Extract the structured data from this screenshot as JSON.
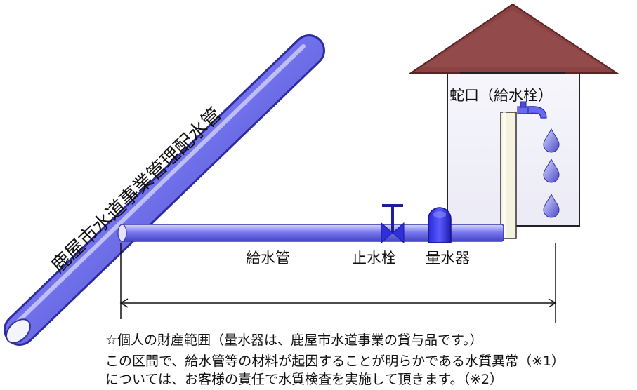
{
  "labels": {
    "main_pipe": "鹿屋市水道事業管理配水管",
    "faucet": "蛇口（給水栓）",
    "service_pipe": "給水管",
    "stop_valve": "止水栓",
    "water_meter": "量水器"
  },
  "notes": {
    "line1": "☆個人の財産範囲（量水器は、鹿屋市水道事業の貸与品です。）",
    "line2": "この区間で、給水管等の材料が起因することが明らかである水質異常（※1）",
    "line3": "については、お客様の責任で水質検査を実施して頂きます。（※2）"
  },
  "colors": {
    "pipe": "#6e6ef0",
    "pipe_light": "#c8c8ff",
    "pipe_dark": "#3a3ab8",
    "roof": "#8a4040",
    "wall": "#f3f2fb"
  }
}
